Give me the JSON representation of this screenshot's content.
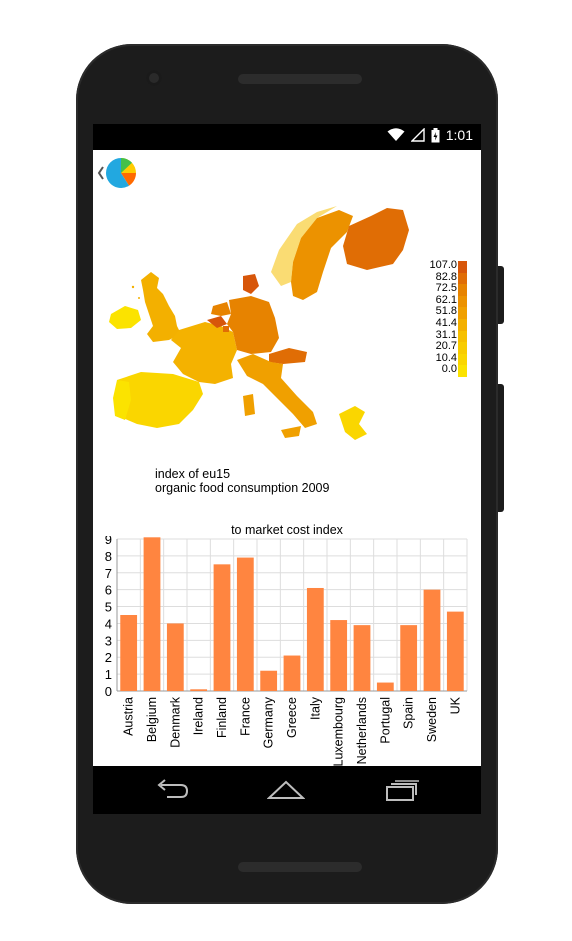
{
  "statusbar": {
    "time": "1:01"
  },
  "map": {
    "legend": [
      "107.0",
      "82.8",
      "72.5",
      "62.1",
      "51.8",
      "41.4",
      "31.1",
      "20.7",
      "10.4",
      "0.0"
    ],
    "legend_colors": [
      "#d7560a",
      "#e06d05",
      "#e78300",
      "#ec9200",
      "#f0a000",
      "#f3b000",
      "#f6c000",
      "#f8cc00",
      "#fad600",
      "#fbe300"
    ],
    "caption_line1": "index of eu15",
    "caption_line2": "organic food consumption 2009"
  },
  "chart_data": {
    "type": "bar",
    "title": "to market cost index",
    "categories": [
      "Austria",
      "Belgium",
      "Denmark",
      "Ireland",
      "Finland",
      "France",
      "Germany",
      "Greece",
      "Italy",
      "Luxembourg",
      "Netherlands",
      "Portugal",
      "Spain",
      "Sweden",
      "UK"
    ],
    "values": [
      4.5,
      9.1,
      4.0,
      0.1,
      7.5,
      7.9,
      1.2,
      2.1,
      6.1,
      4.2,
      3.9,
      0.5,
      3.9,
      6.0,
      4.7
    ],
    "ylim": [
      0,
      9
    ],
    "yticks": [
      0,
      1,
      2,
      3,
      4,
      5,
      6,
      7,
      8,
      9
    ],
    "bar_color": "#ff8540",
    "grid": true
  }
}
